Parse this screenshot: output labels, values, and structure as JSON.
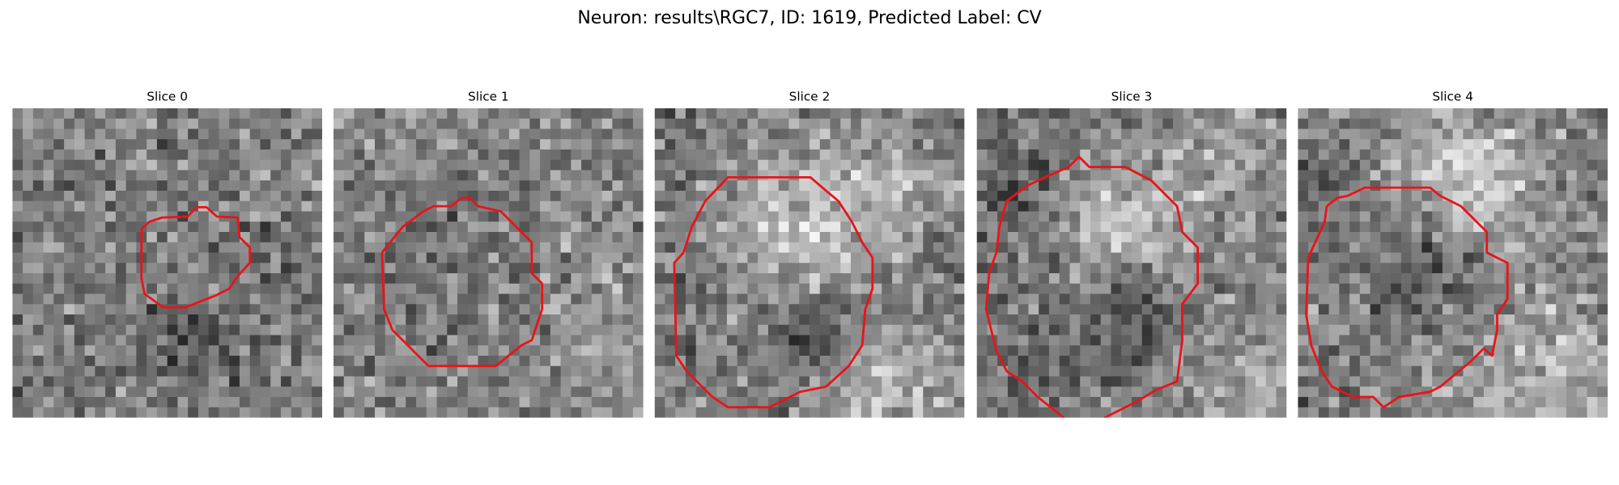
{
  "title": "Neuron: results\\RGC7, ID: 1619, Predicted Label: CV",
  "panels": [
    {
      "title": "Slice 0"
    },
    {
      "title": "Slice 1"
    },
    {
      "title": "Slice 2"
    },
    {
      "title": "Slice 3"
    },
    {
      "title": "Slice 4"
    }
  ]
}
